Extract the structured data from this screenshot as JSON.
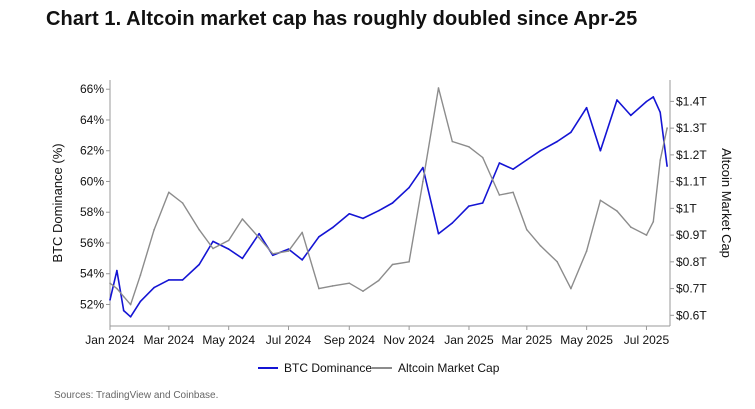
{
  "title": "Chart 1. Altcoin market cap has roughly doubled since Apr-25",
  "source": "Sources: TradingView and Coinbase.",
  "chart_data": {
    "type": "line",
    "x_tick_labels": [
      "Jan 2024",
      "Mar 2024",
      "May 2024",
      "Jul 2024",
      "Sep 2024",
      "Nov 2024",
      "Jan 2025",
      "Mar 2025",
      "May 2025",
      "Jul 2025"
    ],
    "y_left": {
      "label": "BTC Dominance (%)",
      "range": [
        50.6,
        66.6
      ],
      "tick_values": [
        52,
        54,
        56,
        58,
        60,
        62,
        64,
        66
      ],
      "tick_labels": [
        "52%",
        "54%",
        "56%",
        "58%",
        "60%",
        "62%",
        "64%",
        "66%"
      ]
    },
    "y_right": {
      "label": "Altcoin Market Cap",
      "range": [
        0.56,
        1.48
      ],
      "tick_values": [
        0.6,
        0.7,
        0.8,
        0.9,
        1.0,
        1.1,
        1.2,
        1.3,
        1.4
      ],
      "tick_labels": [
        "$0.6T",
        "$0.7T",
        "$0.8T",
        "$0.9T",
        "$1T",
        "$1.1T",
        "$1.2T",
        "$1.3T",
        "$1.4T"
      ]
    },
    "legend": "bottom-center",
    "grid": false,
    "series": [
      {
        "name": "BTC Dominance",
        "axis": "left",
        "color": "#1414d4",
        "x": [
          "2024-01-01",
          "2024-01-08",
          "2024-01-15",
          "2024-01-22",
          "2024-02-01",
          "2024-02-15",
          "2024-03-01",
          "2024-03-15",
          "2024-04-01",
          "2024-04-15",
          "2024-05-01",
          "2024-05-15",
          "2024-06-01",
          "2024-06-15",
          "2024-07-01",
          "2024-07-15",
          "2024-08-01",
          "2024-08-15",
          "2024-09-01",
          "2024-09-15",
          "2024-10-01",
          "2024-10-15",
          "2024-11-01",
          "2024-11-15",
          "2024-12-01",
          "2024-12-15",
          "2025-01-01",
          "2025-01-15",
          "2025-02-01",
          "2025-02-15",
          "2025-03-01",
          "2025-03-15",
          "2025-04-01",
          "2025-04-15",
          "2025-05-01",
          "2025-05-15",
          "2025-06-01",
          "2025-06-15",
          "2025-07-01",
          "2025-07-08",
          "2025-07-15",
          "2025-07-22"
        ],
        "values": [
          52.3,
          54.2,
          51.6,
          51.2,
          52.2,
          53.1,
          53.6,
          53.6,
          54.6,
          56.1,
          55.6,
          55.0,
          56.6,
          55.2,
          55.6,
          54.9,
          56.4,
          57.0,
          57.9,
          57.6,
          58.1,
          58.6,
          59.6,
          60.9,
          56.6,
          57.3,
          58.4,
          58.6,
          61.2,
          60.8,
          61.4,
          62.0,
          62.6,
          63.2,
          64.8,
          62.0,
          65.3,
          64.3,
          65.2,
          65.5,
          64.5,
          61.0
        ]
      },
      {
        "name": "Altcoin Market Cap",
        "axis": "right",
        "color": "#8c8c8c",
        "x": [
          "2024-01-01",
          "2024-01-08",
          "2024-01-15",
          "2024-01-22",
          "2024-02-01",
          "2024-02-15",
          "2024-03-01",
          "2024-03-15",
          "2024-04-01",
          "2024-04-15",
          "2024-05-01",
          "2024-05-15",
          "2024-06-01",
          "2024-06-15",
          "2024-07-01",
          "2024-07-15",
          "2024-08-01",
          "2024-08-15",
          "2024-09-01",
          "2024-09-15",
          "2024-10-01",
          "2024-10-15",
          "2024-11-01",
          "2024-11-15",
          "2024-12-01",
          "2024-12-15",
          "2025-01-01",
          "2025-01-15",
          "2025-02-01",
          "2025-02-15",
          "2025-03-01",
          "2025-03-15",
          "2025-04-01",
          "2025-04-15",
          "2025-05-01",
          "2025-05-15",
          "2025-06-01",
          "2025-06-15",
          "2025-07-01",
          "2025-07-08",
          "2025-07-15",
          "2025-07-22"
        ],
        "values": [
          0.72,
          0.7,
          0.67,
          0.64,
          0.75,
          0.92,
          1.06,
          1.02,
          0.92,
          0.85,
          0.88,
          0.96,
          0.89,
          0.83,
          0.84,
          0.91,
          0.7,
          0.71,
          0.72,
          0.69,
          0.73,
          0.79,
          0.8,
          1.1,
          1.45,
          1.25,
          1.23,
          1.19,
          1.05,
          1.06,
          0.92,
          0.86,
          0.8,
          0.7,
          0.84,
          1.03,
          0.99,
          0.93,
          0.9,
          0.95,
          1.18,
          1.3
        ]
      }
    ]
  }
}
